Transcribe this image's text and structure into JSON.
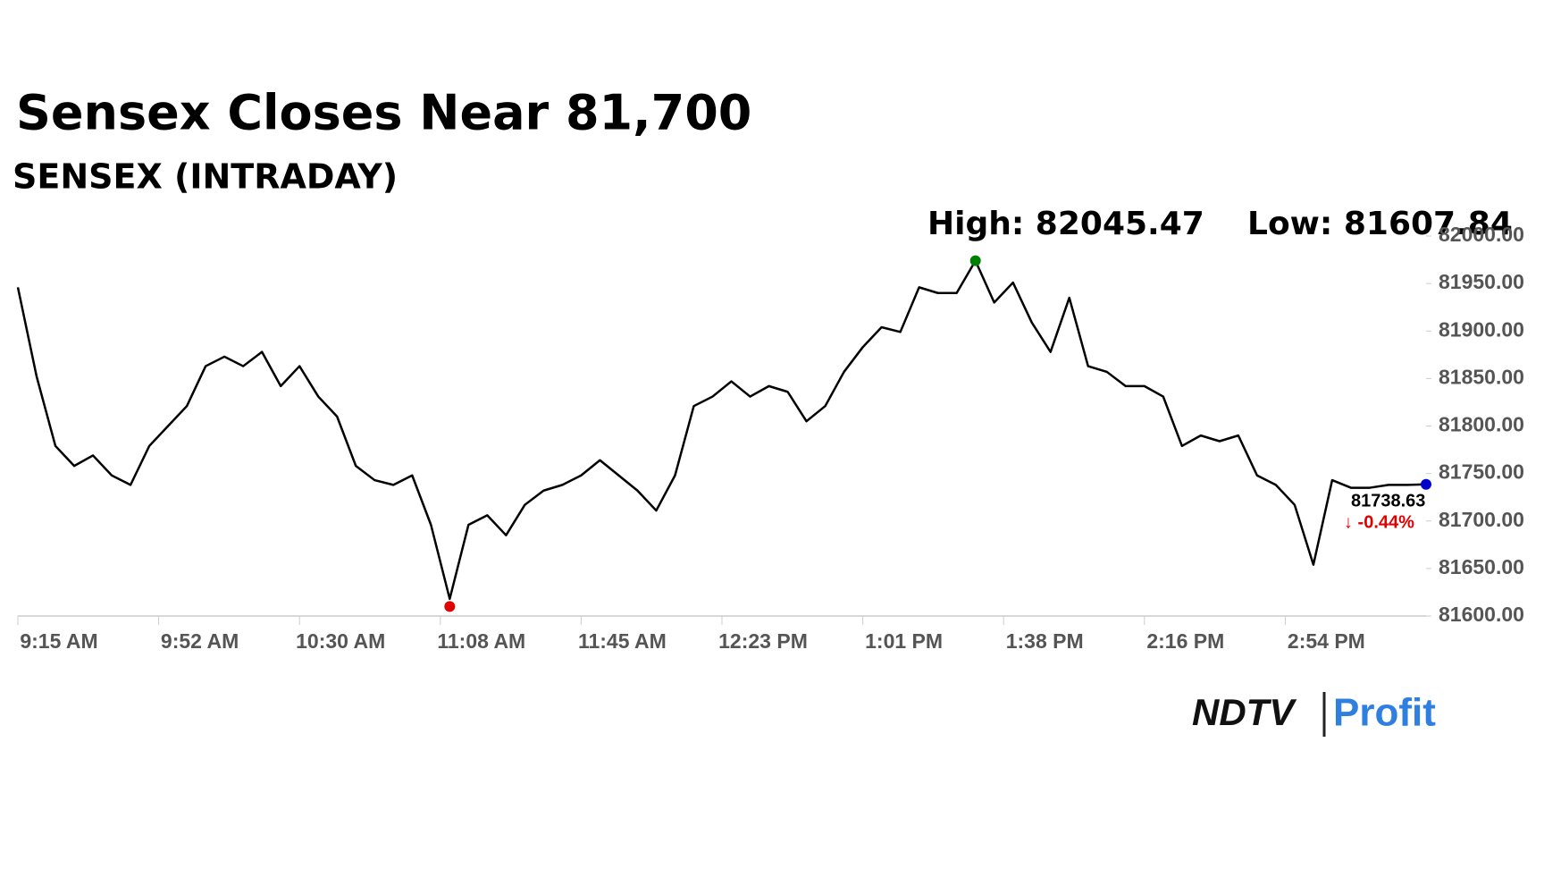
{
  "chart_data": {
    "type": "line",
    "title": "Sensex Closes Near 81,700",
    "subtitle": "SENSEX (INTRADAY)",
    "high_label": "High: 82045.47",
    "low_label": "Low: 81607.84",
    "last_label": "81738.63",
    "change_label": "↓ -0.44%",
    "color": "#000000",
    "x": [
      0,
      5,
      10,
      15,
      20,
      25,
      30,
      35,
      40,
      45,
      50,
      55,
      60,
      65,
      70,
      75,
      80,
      85,
      90,
      95,
      100,
      105,
      110,
      115,
      120,
      125,
      130,
      135,
      140,
      145,
      150,
      155,
      160,
      165,
      170,
      175,
      180,
      185,
      190,
      195,
      200,
      205,
      210,
      215,
      220,
      225,
      230,
      235,
      240,
      245,
      250,
      255,
      260,
      265,
      270,
      275,
      280,
      285,
      290,
      295,
      300,
      305,
      310,
      315,
      320,
      325,
      330,
      335,
      340,
      345,
      350,
      355,
      360,
      365,
      370,
      375
    ],
    "values": [
      81946,
      81852,
      81779,
      81758,
      81769,
      81748,
      81738,
      81779,
      81800,
      81821,
      81863,
      81873,
      81863,
      81878,
      81842,
      81863,
      81831,
      81810,
      81758,
      81743,
      81738,
      81748,
      81696,
      81618,
      81696,
      81706,
      81685,
      81717,
      81732,
      81738,
      81748,
      81764,
      81748,
      81732,
      81711,
      81748,
      81821,
      81831,
      81847,
      81831,
      81842,
      81836,
      81805,
      81821,
      81857,
      81883,
      81904,
      81899,
      81946,
      81940,
      81940,
      81974,
      81930,
      81951,
      81909,
      81878,
      81935,
      81863,
      81857,
      81842,
      81842,
      81831,
      81779,
      81790,
      81784,
      81790,
      81748,
      81738,
      81717,
      81654,
      81743,
      81735,
      81735,
      81738,
      81738,
      81738.63
    ],
    "markers": [
      {
        "x": 255,
        "value": 81974,
        "color": "#008000"
      },
      {
        "x": 115,
        "value": 81610,
        "color": "#e00000"
      },
      {
        "x": 375,
        "value": 81738.63,
        "color": "#0000cc"
      }
    ],
    "xlim": [
      0,
      375
    ],
    "xticks": [
      {
        "value": 0,
        "label": "9:15 AM"
      },
      {
        "value": 37.5,
        "label": "9:52 AM"
      },
      {
        "value": 75,
        "label": "10:30 AM"
      },
      {
        "value": 112.5,
        "label": "11:08 AM"
      },
      {
        "value": 150,
        "label": "11:45 AM"
      },
      {
        "value": 187.5,
        "label": "12:23 PM"
      },
      {
        "value": 225,
        "label": "1:01 PM"
      },
      {
        "value": 262.5,
        "label": "1:38 PM"
      },
      {
        "value": 300,
        "label": "2:16 PM"
      },
      {
        "value": 337.5,
        "label": "2:54 PM"
      }
    ],
    "ylim": [
      81600,
      82000
    ],
    "yticks": [
      {
        "value": 81600,
        "label": "81600.00"
      },
      {
        "value": 81650,
        "label": "81650.00"
      },
      {
        "value": 81700,
        "label": "81700.00"
      },
      {
        "value": 81750,
        "label": "81750.00"
      },
      {
        "value": 81800,
        "label": "81800.00"
      },
      {
        "value": 81850,
        "label": "81850.00"
      },
      {
        "value": 81900,
        "label": "81900.00"
      },
      {
        "value": 81950,
        "label": "81950.00"
      },
      {
        "value": 82000,
        "label": "82000.00"
      }
    ]
  },
  "brand": {
    "left": "NDTV",
    "right": "Profit"
  }
}
